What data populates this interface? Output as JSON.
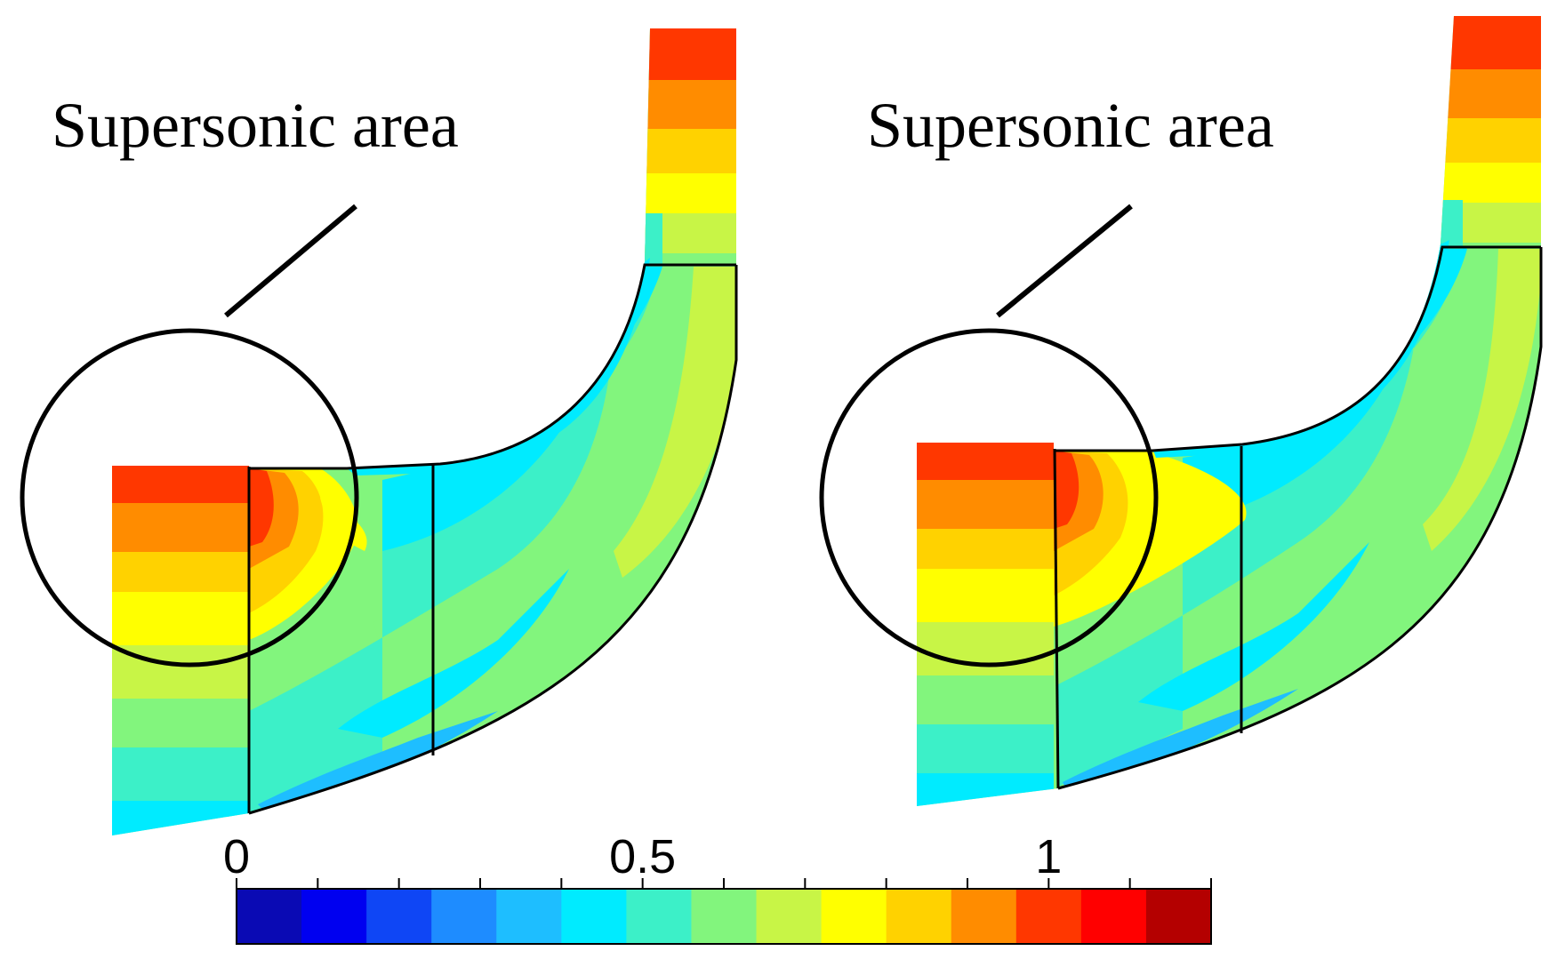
{
  "figure": {
    "panels": [
      {
        "id": "left",
        "annotation": "Supersonic area"
      },
      {
        "id": "right",
        "annotation": "Supersonic area"
      }
    ],
    "colorbar": {
      "min": 0,
      "max": 1.2,
      "levels": 15,
      "tick_labels": [
        "0",
        "0.5",
        "1"
      ],
      "tick_values": [
        0,
        0.5,
        1
      ],
      "colors": [
        "#0a0ab4",
        "#0000f0",
        "#0f46f5",
        "#1e8cff",
        "#1ebeff",
        "#00ebff",
        "#3cf0c8",
        "#82f57d",
        "#c8f546",
        "#ffff00",
        "#ffd200",
        "#ff8c00",
        "#ff3700",
        "#ff0000",
        "#b40000"
      ]
    }
  }
}
